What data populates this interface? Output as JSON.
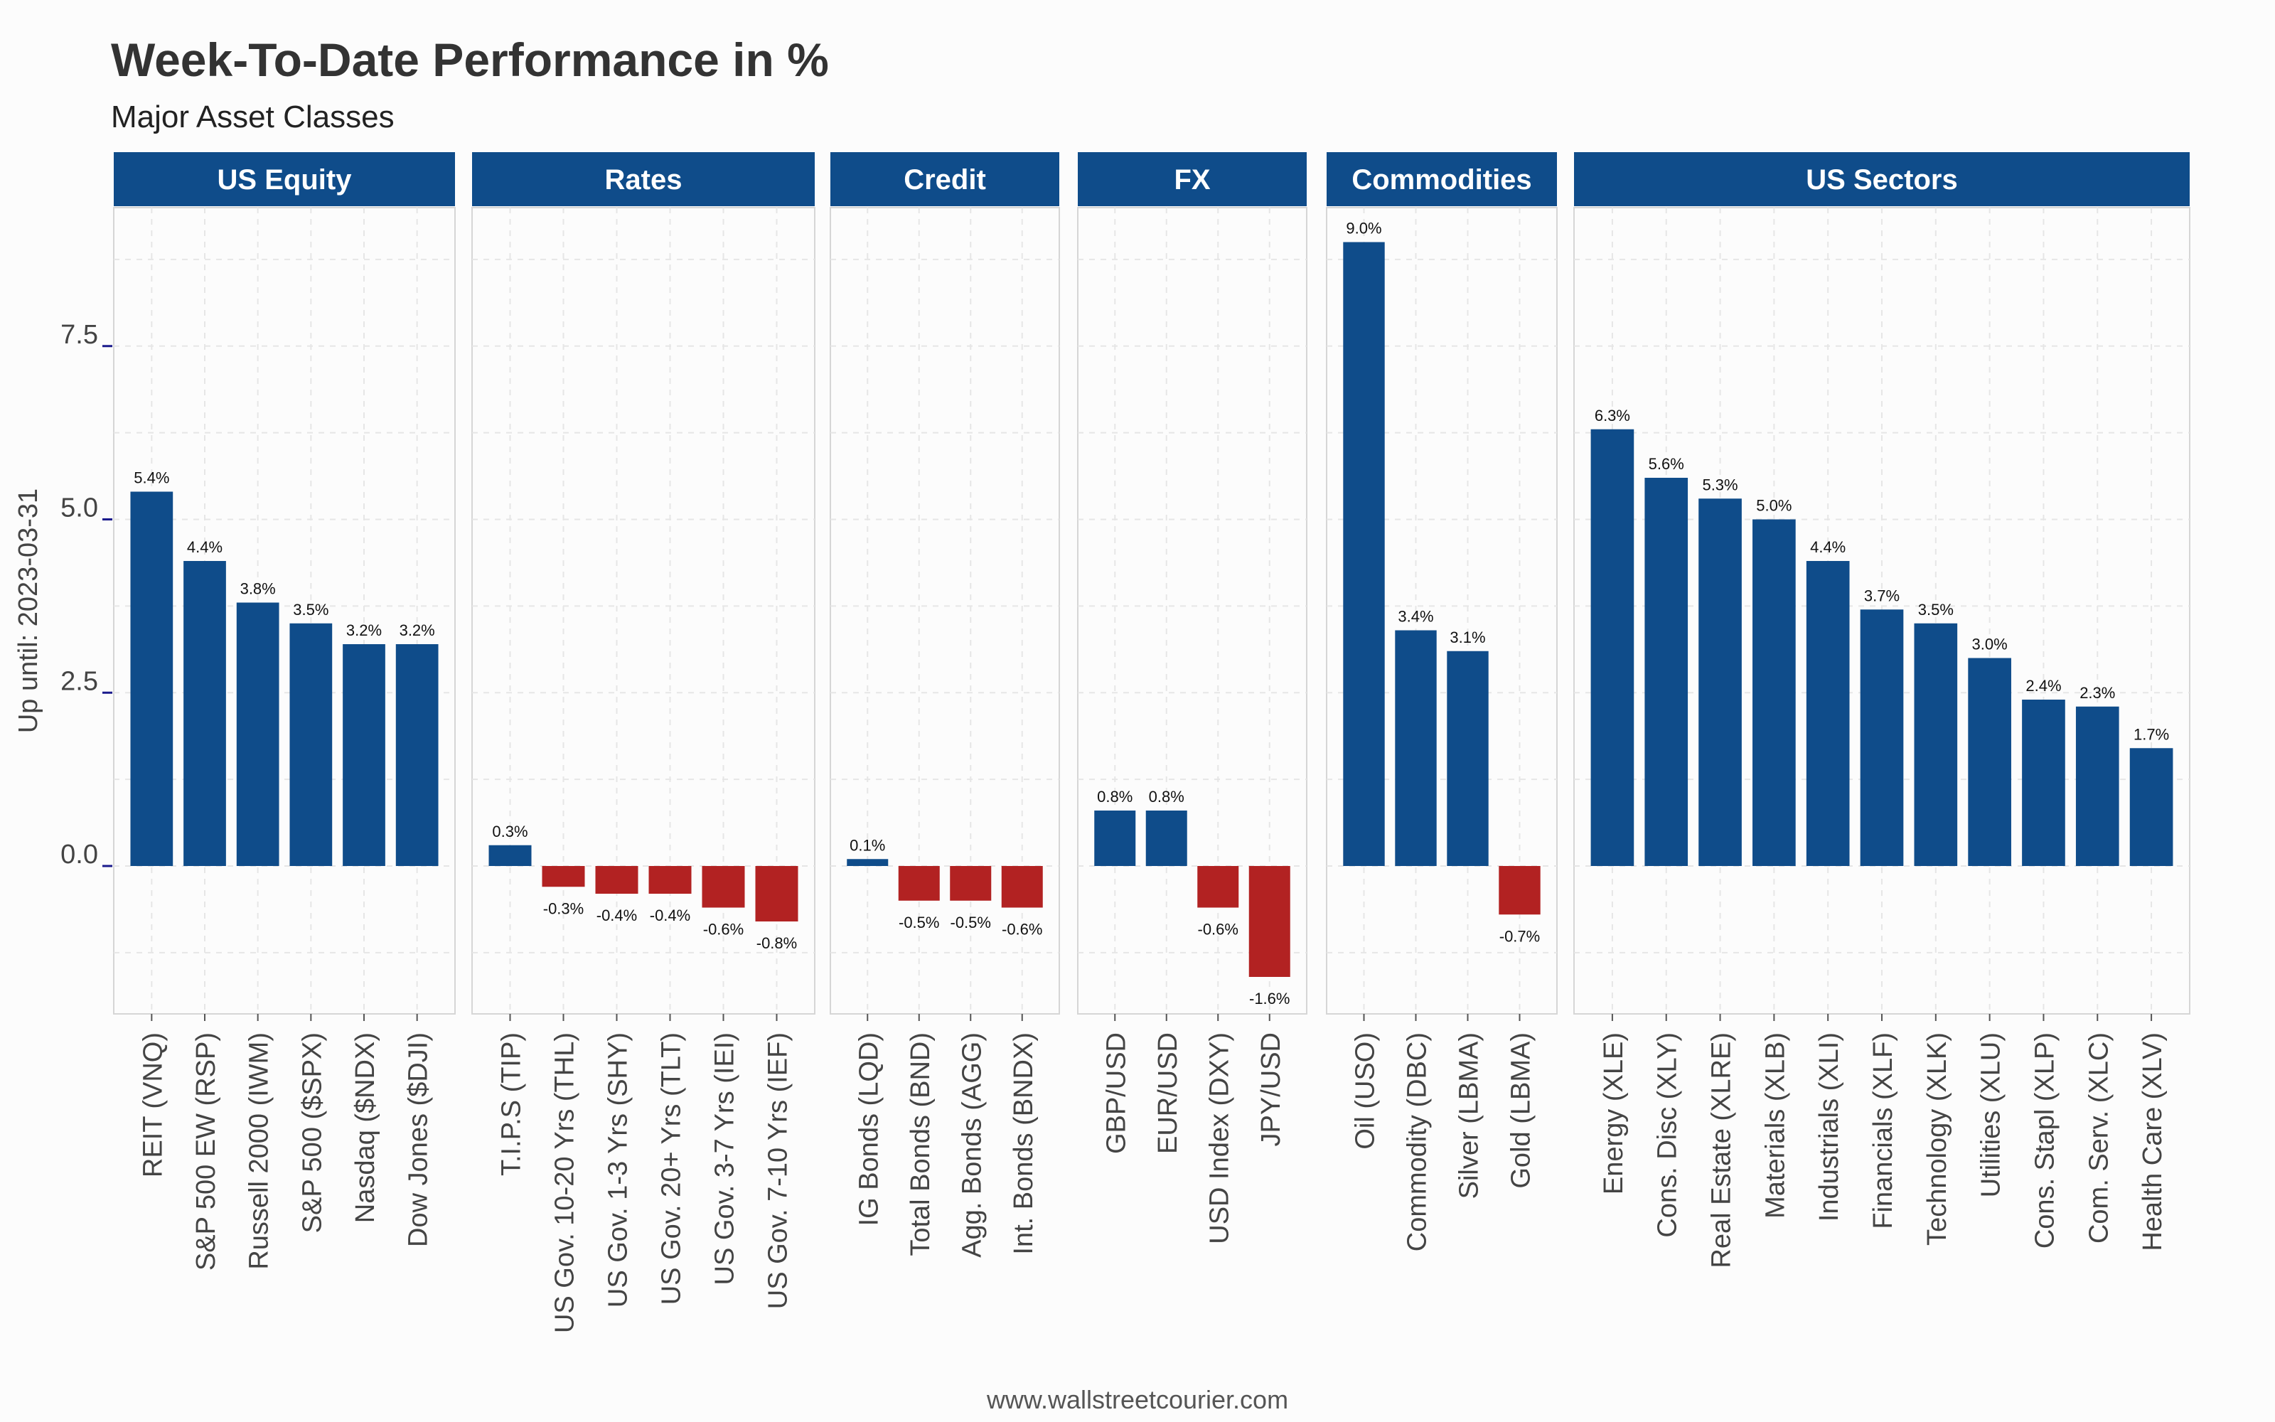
{
  "chart_data": {
    "type": "bar",
    "title": "Week-To-Date Performance in %",
    "subtitle": "Major Asset Classes",
    "ylabel": "Up until: 2023-03-31",
    "caption": "www.wallstreetcourier.com",
    "ylim": [
      -2.1,
      9.5
    ],
    "yticks": [
      0.0,
      2.5,
      5.0,
      7.5
    ],
    "ytick_labels": [
      "0.0",
      "2.5",
      "5.0",
      "7.5"
    ],
    "grid": true,
    "colors": {
      "positive": "#0f4c8a",
      "negative": "#b22222",
      "panel_header": "#0f4c8a",
      "panel_header_text": "#ffffff"
    },
    "panels": [
      {
        "name": "US Equity",
        "categories": [
          "REIT (VNQ)",
          "S&P 500 EW (RSP)",
          "Russell 2000 (IWM)",
          "S&P 500 ($SPX)",
          "Nasdaq ($NDX)",
          "Dow Jones ($DJI)"
        ],
        "values": [
          5.4,
          4.4,
          3.8,
          3.5,
          3.2,
          3.2
        ],
        "labels": [
          "5.4%",
          "4.4%",
          "3.8%",
          "3.5%",
          "3.2%",
          "3.2%"
        ]
      },
      {
        "name": "Rates",
        "categories": [
          "T.I.P.S (TIP)",
          "US Gov. 10-20 Yrs (THL)",
          "US Gov. 1-3 Yrs (SHY)",
          "US Gov. 20+ Yrs (TLT)",
          "US Gov. 3-7 Yrs (IEI)",
          "US Gov. 7-10 Yrs (IEF)"
        ],
        "values": [
          0.3,
          -0.3,
          -0.4,
          -0.4,
          -0.6,
          -0.8
        ],
        "labels": [
          "0.3%",
          "-0.3%",
          "-0.4%",
          "-0.4%",
          "-0.6%",
          "-0.8%"
        ]
      },
      {
        "name": "Credit",
        "categories": [
          "IG Bonds (LQD)",
          "Total Bonds (BND)",
          "Agg. Bonds (AGG)",
          "Int. Bonds (BNDX)"
        ],
        "values": [
          0.1,
          -0.5,
          -0.5,
          -0.6
        ],
        "labels": [
          "0.1%",
          "-0.5%",
          "-0.5%",
          "-0.6%"
        ]
      },
      {
        "name": "FX",
        "categories": [
          "GBP/USD",
          "EUR/USD",
          "USD Index (DXY)",
          "JPY/USD"
        ],
        "values": [
          0.8,
          0.8,
          -0.6,
          -1.6
        ],
        "labels": [
          "0.8%",
          "0.8%",
          "-0.6%",
          "-1.6%"
        ]
      },
      {
        "name": "Commodities",
        "categories": [
          "Oil (USO)",
          "Commodity (DBC)",
          "Silver (LBMA)",
          "Gold (LBMA)"
        ],
        "values": [
          9.0,
          3.4,
          3.1,
          -0.7
        ],
        "labels": [
          "9.0%",
          "3.4%",
          "3.1%",
          "-0.7%"
        ]
      },
      {
        "name": "US Sectors",
        "categories": [
          "Energy (XLE)",
          "Cons. Disc (XLY)",
          "Real Estate (XLRE)",
          "Materials (XLB)",
          "Industrials (XLI)",
          "Financials (XLF)",
          "Technology (XLK)",
          "Utilities (XLU)",
          "Cons. Stapl (XLP)",
          "Com. Serv. (XLC)",
          "Health Care (XLV)"
        ],
        "values": [
          6.3,
          5.6,
          5.3,
          5.0,
          4.4,
          3.7,
          3.5,
          3.0,
          2.4,
          2.3,
          1.7
        ],
        "labels": [
          "6.3%",
          "5.6%",
          "5.3%",
          "5.0%",
          "4.4%",
          "3.7%",
          "3.5%",
          "3.0%",
          "2.4%",
          "2.3%",
          "1.7%"
        ]
      }
    ]
  }
}
